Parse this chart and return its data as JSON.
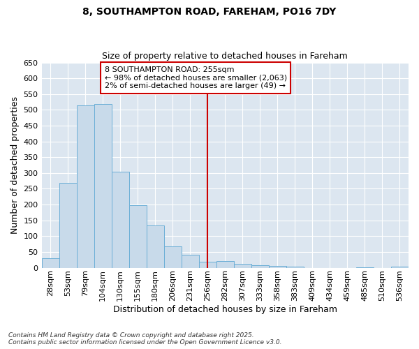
{
  "title1": "8, SOUTHAMPTON ROAD, FAREHAM, PO16 7DY",
  "title2": "Size of property relative to detached houses in Fareham",
  "xlabel": "Distribution of detached houses by size in Fareham",
  "ylabel": "Number of detached properties",
  "categories": [
    "28sqm",
    "53sqm",
    "79sqm",
    "104sqm",
    "130sqm",
    "155sqm",
    "180sqm",
    "206sqm",
    "231sqm",
    "256sqm",
    "282sqm",
    "307sqm",
    "333sqm",
    "358sqm",
    "383sqm",
    "409sqm",
    "434sqm",
    "459sqm",
    "485sqm",
    "510sqm",
    "536sqm"
  ],
  "values": [
    30,
    268,
    515,
    518,
    305,
    198,
    133,
    68,
    40,
    18,
    20,
    13,
    8,
    5,
    4,
    0,
    0,
    0,
    2,
    0,
    3
  ],
  "bar_color": "#c8daea",
  "bar_edge_color": "#6aaed6",
  "property_line_index": 9,
  "property_line_color": "#cc0000",
  "annotation_text": "8 SOUTHAMPTON ROAD: 255sqm\n← 98% of detached houses are smaller (2,063)\n2% of semi-detached houses are larger (49) →",
  "annotation_box_color": "#cc0000",
  "annotation_text_color": "#000000",
  "ylim": [
    0,
    650
  ],
  "yticks": [
    0,
    50,
    100,
    150,
    200,
    250,
    300,
    350,
    400,
    450,
    500,
    550,
    600,
    650
  ],
  "fig_background_color": "#ffffff",
  "plot_background_color": "#dce6f0",
  "grid_color": "#ffffff",
  "footer_line1": "Contains HM Land Registry data © Crown copyright and database right 2025.",
  "footer_line2": "Contains public sector information licensed under the Open Government Licence v3.0."
}
